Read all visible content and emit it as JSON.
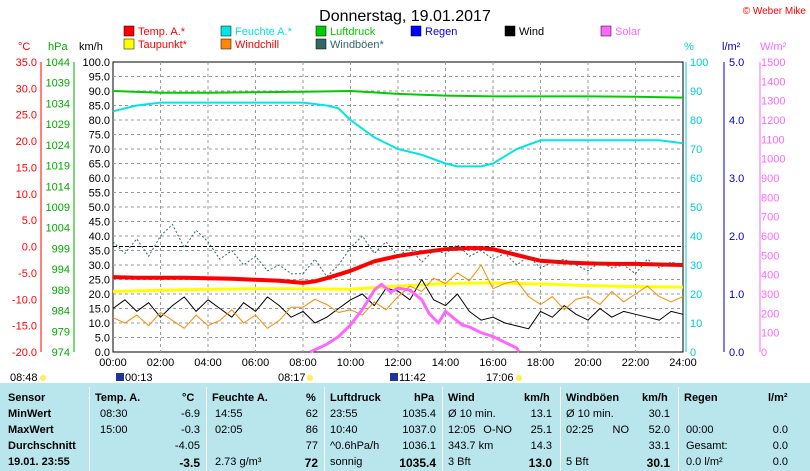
{
  "title": "Donnerstag, 19.01.2017",
  "copyright": "© Weber Mike",
  "legend": [
    {
      "label": "Temp. A.*",
      "color": "#ff0000"
    },
    {
      "label": "Feuchte A.*",
      "color": "#00e5e5"
    },
    {
      "label": "Luftdruck",
      "color": "#00cc00"
    },
    {
      "label": "Regen",
      "color": "#0000ff"
    },
    {
      "label": "Wind",
      "color": "#000000"
    },
    {
      "label": "Solar",
      "color": "#ff66ff"
    },
    {
      "label": "Taupunkt*",
      "color": "#ffff00"
    },
    {
      "label": "Windchill",
      "color": "#ff8800"
    },
    {
      "label": "Windböen*",
      "color": "#336666"
    }
  ],
  "axis_units": {
    "temp": "°C",
    "pressure": "hPa",
    "wind": "km/h",
    "humidity": "%",
    "rain": "l/m²",
    "solar": "W/m²"
  },
  "chart_data": {
    "type": "line",
    "x_ticks": [
      "00:00",
      "02:00",
      "04:00",
      "06:00",
      "08:00",
      "10:00",
      "12:00",
      "14:00",
      "16:00",
      "18:00",
      "20:00",
      "22:00",
      "24:00"
    ],
    "axes": {
      "temp": {
        "min": -20,
        "max": 35,
        "ticks": [
          "35.0",
          "30.0",
          "25.0",
          "20.0",
          "15.0",
          "10.0",
          "5.0",
          "0.0",
          "-5.0",
          "-10.0",
          "-15.0",
          "-20.0"
        ],
        "color": "#ff0000"
      },
      "pressure": {
        "min": 974,
        "max": 1044,
        "ticks": [
          "1044",
          "1039",
          "1034",
          "1029",
          "1024",
          "1019",
          "1014",
          "1009",
          "1004",
          "999",
          "994",
          "989",
          "984",
          "979",
          "974"
        ],
        "color": "#00aa00"
      },
      "wind": {
        "min": 0,
        "max": 100,
        "ticks": [
          "100.0",
          "95.0",
          "90.0",
          "85.0",
          "80.0",
          "75.0",
          "70.0",
          "65.0",
          "60.0",
          "55.0",
          "50.0",
          "45.0",
          "40.0",
          "35.0",
          "30.0",
          "25.0",
          "20.0",
          "15.0",
          "10.0",
          "5.0",
          "0.0"
        ],
        "color": "#000000"
      },
      "humidity": {
        "min": 0,
        "max": 100,
        "ticks": [
          "100",
          "90",
          "80",
          "70",
          "60",
          "50",
          "40",
          "30",
          "20",
          "10",
          "0"
        ],
        "color": "#00cccc"
      },
      "rain": {
        "min": 0,
        "max": 5,
        "ticks": [
          "5.0",
          "4.0",
          "3.0",
          "2.0",
          "1.0",
          "0.0"
        ],
        "color": "#0000cc"
      },
      "solar": {
        "min": 0,
        "max": 1500,
        "ticks": [
          "1500",
          "1400",
          "1300",
          "1200",
          "1100",
          "1000",
          "900",
          "800",
          "700",
          "600",
          "500",
          "400",
          "300",
          "200",
          "100",
          "0"
        ],
        "color": "#ff66ff"
      }
    },
    "series": [
      {
        "name": "Temp. A.*",
        "axis": "temp",
        "color": "#ff0000",
        "width": 4,
        "x": [
          0,
          1,
          2,
          3,
          4,
          5,
          6,
          7,
          8,
          8.5,
          9,
          10,
          11,
          12,
          13,
          14,
          15,
          15.5,
          16,
          17,
          18,
          19,
          20,
          21,
          22,
          23,
          24
        ],
        "y": [
          -5.8,
          -5.9,
          -5.9,
          -5.9,
          -6.0,
          -6.1,
          -6.3,
          -6.5,
          -6.9,
          -6.6,
          -6.0,
          -4.6,
          -2.8,
          -1.8,
          -1.1,
          -0.5,
          -0.3,
          -0.3,
          -0.5,
          -1.6,
          -2.7,
          -3.0,
          -3.2,
          -3.3,
          -3.3,
          -3.4,
          -3.5
        ]
      },
      {
        "name": "Taupunkt*",
        "axis": "temp",
        "color": "#ffff00",
        "width": 3,
        "x": [
          0,
          2,
          4,
          6,
          8,
          10,
          12,
          14,
          16,
          18,
          20,
          22,
          24
        ],
        "y": [
          -8.5,
          -8.3,
          -8.1,
          -8.0,
          -8.0,
          -8.1,
          -7.5,
          -7.0,
          -6.9,
          -7.1,
          -7.4,
          -7.6,
          -7.7
        ]
      },
      {
        "name": "Feuchte A.*",
        "axis": "humidity",
        "color": "#00e5e5",
        "width": 2,
        "x": [
          0,
          1,
          2,
          3,
          4,
          5,
          6,
          7,
          8,
          9,
          9.5,
          10,
          11,
          12,
          13,
          14,
          14.5,
          15,
          15.5,
          16,
          17,
          18,
          19,
          20,
          21,
          22,
          23,
          24
        ],
        "y": [
          83,
          85,
          86,
          86,
          86,
          86,
          86,
          86,
          86,
          85,
          84,
          80,
          74,
          70,
          68,
          65,
          64,
          64,
          64,
          65,
          70,
          73,
          73,
          73,
          73,
          73,
          73,
          72
        ]
      },
      {
        "name": "Luftdruck",
        "axis": "pressure",
        "color": "#00cc00",
        "width": 2,
        "x": [
          0,
          2,
          4,
          6,
          8,
          10,
          12,
          14,
          16,
          18,
          20,
          22,
          24
        ],
        "y": [
          1037.0,
          1036.6,
          1036.6,
          1036.7,
          1036.8,
          1037.0,
          1036.3,
          1035.9,
          1035.7,
          1035.7,
          1035.7,
          1035.6,
          1035.4
        ]
      },
      {
        "name": "Wind",
        "axis": "wind",
        "color": "#000000",
        "width": 1,
        "x": [
          0,
          0.5,
          1,
          1.5,
          2,
          2.5,
          3,
          3.5,
          4,
          4.5,
          5,
          5.5,
          6,
          6.5,
          7,
          7.5,
          8,
          8.5,
          9,
          9.5,
          10,
          10.5,
          11,
          11.5,
          12,
          12.5,
          13,
          13.5,
          14,
          14.5,
          15,
          15.5,
          16,
          16.5,
          17,
          17.5,
          18,
          18.5,
          19,
          19.5,
          20,
          20.5,
          21,
          21.5,
          22,
          22.5,
          23,
          23.5,
          24
        ],
        "y": [
          15,
          18,
          14,
          17,
          12,
          16,
          19,
          14,
          18,
          15,
          12,
          17,
          14,
          19,
          16,
          12,
          14,
          10,
          12,
          15,
          18,
          20,
          16,
          22,
          21,
          18,
          25,
          18,
          16,
          20,
          14,
          11,
          12,
          10,
          9,
          8,
          14,
          12,
          16,
          13,
          11,
          15,
          12,
          14,
          13,
          12,
          11,
          14,
          13
        ]
      },
      {
        "name": "Windchill",
        "axis": "temp",
        "color": "#ff8800",
        "width": 1,
        "x": [
          0,
          0.5,
          1,
          1.5,
          2,
          2.5,
          3,
          3.5,
          4,
          4.5,
          5,
          5.5,
          6,
          6.5,
          7,
          7.5,
          8,
          8.5,
          9,
          9.5,
          10,
          10.5,
          11,
          11.5,
          12,
          12.5,
          13,
          13.5,
          14,
          14.5,
          15,
          15.5,
          16,
          16.5,
          17,
          17.5,
          18,
          18.5,
          19,
          19.5,
          20,
          20.5,
          21,
          21.5,
          22,
          22.5,
          23,
          23.5,
          24
        ],
        "y": [
          -13.5,
          -14.5,
          -13.0,
          -15.0,
          -12.5,
          -14.0,
          -15.5,
          -13.0,
          -15.0,
          -14.0,
          -12.0,
          -14.5,
          -13.0,
          -15.5,
          -14.0,
          -11.5,
          -11.5,
          -10.0,
          -11.0,
          -12.5,
          -12.0,
          -13.0,
          -10.5,
          -12.0,
          -9.5,
          -7.5,
          -8.5,
          -6.0,
          -7.0,
          -5.0,
          -6.5,
          -3.5,
          -8.0,
          -7.0,
          -6.5,
          -9.5,
          -11.0,
          -9.5,
          -12.0,
          -10.0,
          -9.5,
          -11.0,
          -8.5,
          -10.5,
          -9.0,
          -7.5,
          -9.5,
          -10.5,
          -9.5
        ]
      },
      {
        "name": "Windböen*",
        "axis": "wind",
        "color": "#336666",
        "width": 1,
        "dash": "2,2",
        "x": [
          0,
          0.5,
          1,
          1.5,
          2,
          2.5,
          3,
          3.5,
          4,
          4.5,
          5,
          5.5,
          6,
          6.5,
          7,
          7.5,
          8,
          8.5,
          9,
          9.5,
          10,
          10.5,
          11,
          11.5,
          12,
          12.5,
          13,
          13.5,
          14,
          14.5,
          15,
          15.5,
          16,
          16.5,
          17,
          17.5,
          18,
          18.5,
          19,
          19.5,
          20,
          20.5,
          21,
          21.5,
          22,
          22.5,
          23,
          23.5,
          24
        ],
        "y": [
          38,
          34,
          39,
          33,
          40,
          44,
          36,
          42,
          38,
          32,
          35,
          30,
          33,
          28,
          30,
          27,
          27,
          32,
          26,
          30,
          36,
          40,
          34,
          38,
          33,
          36,
          31,
          35,
          34,
          37,
          33,
          35,
          32,
          34,
          30,
          33,
          29,
          31,
          32,
          30,
          28,
          31,
          29,
          30,
          27,
          32,
          29,
          31,
          30
        ]
      },
      {
        "name": "Solar",
        "axis": "solar",
        "color": "#ff66ff",
        "width": 3,
        "x": [
          8.3,
          9,
          9.5,
          10,
          10.5,
          11,
          11.3,
          11.7,
          12,
          12.5,
          13,
          13.3,
          13.7,
          14,
          14.3,
          14.7,
          15,
          15.5,
          16,
          16.5,
          17,
          17.1
        ],
        "y": [
          0,
          40,
          80,
          140,
          220,
          320,
          350,
          310,
          330,
          320,
          270,
          200,
          150,
          210,
          180,
          140,
          130,
          100,
          80,
          50,
          20,
          0
        ]
      }
    ]
  },
  "sun": {
    "sunrise": "08:17",
    "sunset": "17:06",
    "moonrise": "00:13",
    "moonset": "11:42",
    "dawn": "08:48"
  },
  "table": {
    "headers": [
      "Sensor",
      "Temp. A.",
      "°C",
      "Feuchte A.",
      "%",
      "Luftdruck",
      "hPa",
      "Wind",
      "km/h",
      "Windböen",
      "km/h",
      "Regen",
      "l/m²"
    ],
    "rows": [
      {
        "label": "MinWert",
        "temp_time": "08:30",
        "temp": "-6.9",
        "hum_time": "14:55",
        "hum": "62",
        "press_time": "23:55",
        "press": "1035.4",
        "wind_label": "Ø 10 min.",
        "wind": "13.1",
        "gust_label": "Ø 10 min.",
        "gust": "30.1",
        "rain_time": "",
        "rain": ""
      },
      {
        "label": "MaxWert",
        "temp_time": "15:00",
        "temp": "-0.3",
        "hum_time": "02:05",
        "hum": "86",
        "press_time": "10:40",
        "press": "1037.0",
        "wind_label": "12:05",
        "wind_dir": "O-NO",
        "wind": "25.1",
        "gust_label": "02:25",
        "gust_dir": "NO",
        "gust": "52.0",
        "rain_time": "00:00",
        "rain": "0.0"
      },
      {
        "label": "Durchschnitt",
        "temp_time": "",
        "temp": "-4.05",
        "hum_time": "",
        "hum": "77",
        "press_time": "^0.6hPa/h",
        "press": "1036.1",
        "wind_label": "343.7 km",
        "wind": "14.3",
        "gust_label": "",
        "gust": "33.1",
        "rain_time": "Gesamt:",
        "rain": "0.0"
      },
      {
        "label": "19.01. 23:55",
        "temp_time": "",
        "temp": "-3.5",
        "hum_time": "2.73 g/m³",
        "hum": "72",
        "press_time": "sonnig",
        "press": "1035.4",
        "wind_label": "3 Bft",
        "wind": "13.0",
        "gust_label": "5 Bft",
        "gust": "30.1",
        "rain_time": "0.0 l/m²",
        "rain": "0.0"
      }
    ]
  }
}
